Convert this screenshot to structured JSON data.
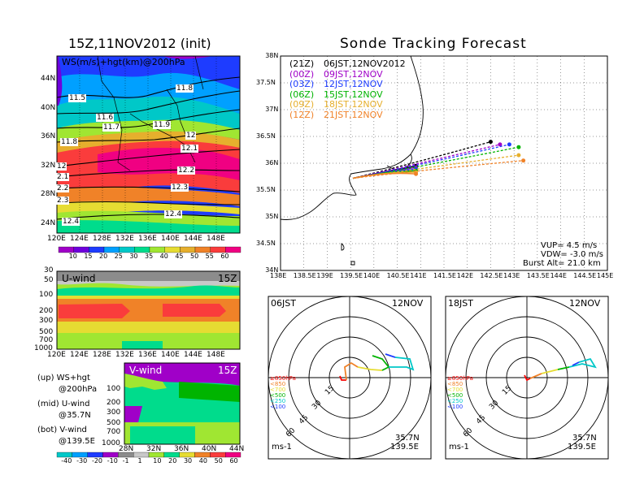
{
  "left_title": "15Z,11NOV2012 (init)",
  "right_title": "Sonde Tracking Forecast",
  "map_panel": {
    "label": "WS(m/s)+hgt(km)@200hPa",
    "lat_ticks": [
      "44N",
      "40N",
      "36N",
      "32N",
      "28N",
      "24N"
    ],
    "lon_ticks": [
      "120E",
      "124E",
      "128E",
      "132E",
      "136E",
      "140E",
      "144E",
      "148E"
    ],
    "contour_labels": [
      "11.5",
      "11.6",
      "11.7",
      "11.8",
      "11.8",
      "11.9",
      "12",
      "12.1",
      "12",
      "2.1",
      "12.2",
      "2.2",
      "12.3",
      "2.3",
      "12.4",
      "12.4"
    ]
  },
  "ws_colorbar": {
    "labels": [
      "10",
      "15",
      "20",
      "25",
      "30",
      "35",
      "40",
      "45",
      "50",
      "55",
      "60"
    ],
    "colors": [
      "#a000c8",
      "#6e00dc",
      "#1e3cff",
      "#00a0ff",
      "#00c8c8",
      "#00dc8c",
      "#a0e632",
      "#e6dc32",
      "#e6af2d",
      "#f08228",
      "#fa3c3c",
      "#f00082"
    ]
  },
  "u_panel": {
    "label": "U-wind",
    "time": "15Z",
    "p_ticks": [
      "30",
      "50",
      "100",
      "200",
      "300",
      "500",
      "700",
      "1000"
    ],
    "lon_ticks": [
      "120E",
      "124E",
      "128E",
      "132E",
      "136E",
      "140E",
      "144E",
      "148E"
    ]
  },
  "v_panel": {
    "label": "V-wind",
    "time": "15Z",
    "p_ticks": [
      "100",
      "200",
      "300",
      "500",
      "700",
      "1000"
    ],
    "lat_ticks": [
      "28N",
      "32N",
      "36N",
      "40N",
      "44N"
    ]
  },
  "legend_notes": [
    {
      "head": "(up) WS+hgt",
      "sub": "@200hPa"
    },
    {
      "head": "(mid) U-wind",
      "sub": "@35.7N"
    },
    {
      "head": "(bot) V-wind",
      "sub": "@139.5E"
    }
  ],
  "wind_colorbar": {
    "labels": [
      "-40",
      "-30",
      "-20",
      "-10",
      "-1",
      "1",
      "10",
      "20",
      "30",
      "40",
      "50",
      "60"
    ],
    "colors": [
      "#00c8c8",
      "#00a0ff",
      "#1e3cff",
      "#a000c8",
      "#8c8c8c",
      "#c8c8c8",
      "#a0e632",
      "#00dc8c",
      "#e6dc32",
      "#f08228",
      "#fa3c3c",
      "#f00082"
    ]
  },
  "tracking_map": {
    "lat_ticks": [
      "38N",
      "37.5N",
      "37N",
      "36.5N",
      "36N",
      "35.5N",
      "35N",
      "34.5N",
      "34N"
    ],
    "lon_ticks": [
      "138E",
      "138.5E",
      "139E",
      "139.5E",
      "140E",
      "140.5E",
      "141E",
      "141.5E",
      "142E",
      "142.5E",
      "143E",
      "143.5E",
      "144E",
      "144.5E",
      "145E"
    ],
    "launches": [
      {
        "code": "(21Z)",
        "time": "06JST,12NOV2012",
        "color": "#000000"
      },
      {
        "code": "(00Z)",
        "time": "09JST,12NOV",
        "color": "#a000c8"
      },
      {
        "code": "(03Z)",
        "time": "12JST,12NOV",
        "color": "#1e3cff"
      },
      {
        "code": "(06Z)",
        "time": "15JST,12NOV",
        "color": "#00b400"
      },
      {
        "code": "(09Z)",
        "time": "18JST,12NOV",
        "color": "#e6af2d"
      },
      {
        "code": "(12Z)",
        "time": "21JST,12NOV",
        "color": "#f08228"
      }
    ],
    "params": [
      "VUP= 4.5 m/s",
      "VDW= -3.0 m/s",
      "Burst Alt= 21.0 km"
    ]
  },
  "hodographs": [
    {
      "time": "06JST",
      "date": "12NOV",
      "site": "35.7N",
      "lon": "139.5E",
      "unit": "ms-1"
    },
    {
      "time": "18JST",
      "date": "12NOV",
      "site": "35.7N",
      "lon": "139.5E",
      "unit": "ms-1"
    }
  ],
  "hodo_legend": [
    "≥850hPa",
    "<850",
    "<700",
    "<500",
    "<250",
    "<100"
  ],
  "hodo_legend_colors": [
    "#fa0000",
    "#f08228",
    "#e6dc32",
    "#00b400",
    "#00c8c8",
    "#1e3cff"
  ],
  "hodo_ring_labels": [
    "15",
    "30",
    "45",
    "60"
  ],
  "chart_data": [
    {
      "type": "heatmap",
      "title": "WS(m/s)+hgt(km)@200hPa",
      "x_ticks": [
        "120E",
        "124E",
        "128E",
        "132E",
        "136E",
        "140E",
        "144E",
        "148E"
      ],
      "y_ticks": [
        "24N",
        "28N",
        "32N",
        "36N",
        "40N",
        "44N"
      ],
      "colorbar": [
        "10",
        "15",
        "20",
        "25",
        "30",
        "35",
        "40",
        "45",
        "50",
        "55",
        "60"
      ]
    },
    {
      "type": "line",
      "title": "Sonde Tracking Forecast",
      "xlim": [
        138,
        145
      ],
      "ylim": [
        34,
        38
      ],
      "series": [
        {
          "name": "(21Z) 06JST,12NOV2012",
          "end": [
            142.5,
            36.4
          ]
        },
        {
          "name": "(00Z) 09JST,12NOV",
          "end": [
            142.7,
            36.35
          ]
        },
        {
          "name": "(03Z) 12JST,12NOV",
          "end": [
            142.9,
            36.35
          ]
        },
        {
          "name": "(06Z) 15JST,12NOV",
          "end": [
            143.1,
            36.3
          ]
        },
        {
          "name": "(09Z) 18JST,12NOV",
          "end": [
            143.1,
            36.15
          ]
        },
        {
          "name": "(12Z) 21JST,12NOV",
          "end": [
            143.2,
            36.05
          ]
        }
      ]
    }
  ]
}
